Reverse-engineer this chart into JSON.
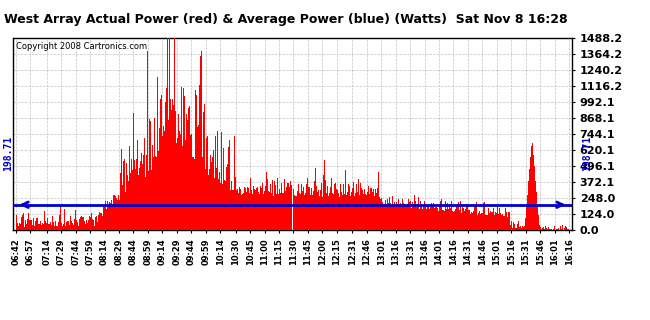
{
  "title": "West Array Actual Power (red) & Average Power (blue) (Watts)  Sat Nov 8 16:28",
  "copyright": "Copyright 2008 Cartronics.com",
  "ylim": [
    0.0,
    1488.2
  ],
  "yticks": [
    0.0,
    124.0,
    248.0,
    372.1,
    496.1,
    620.1,
    744.1,
    868.1,
    992.1,
    1116.2,
    1240.2,
    1364.2,
    1488.2
  ],
  "avg_power": 198.71,
  "background_color": "#ffffff",
  "grid_color": "#999999",
  "bar_color": "#ff0000",
  "avg_line_color": "#0000cc",
  "x_tick_labels": [
    "06:42",
    "06:57",
    "07:14",
    "07:29",
    "07:44",
    "07:59",
    "08:14",
    "08:29",
    "08:44",
    "08:59",
    "09:14",
    "09:29",
    "09:44",
    "09:59",
    "10:14",
    "10:30",
    "10:45",
    "11:00",
    "11:15",
    "11:30",
    "11:45",
    "12:00",
    "12:15",
    "12:31",
    "12:46",
    "13:01",
    "13:16",
    "13:31",
    "13:46",
    "14:01",
    "14:16",
    "14:31",
    "14:46",
    "15:01",
    "15:16",
    "15:31",
    "15:46",
    "16:01",
    "16:16"
  ]
}
